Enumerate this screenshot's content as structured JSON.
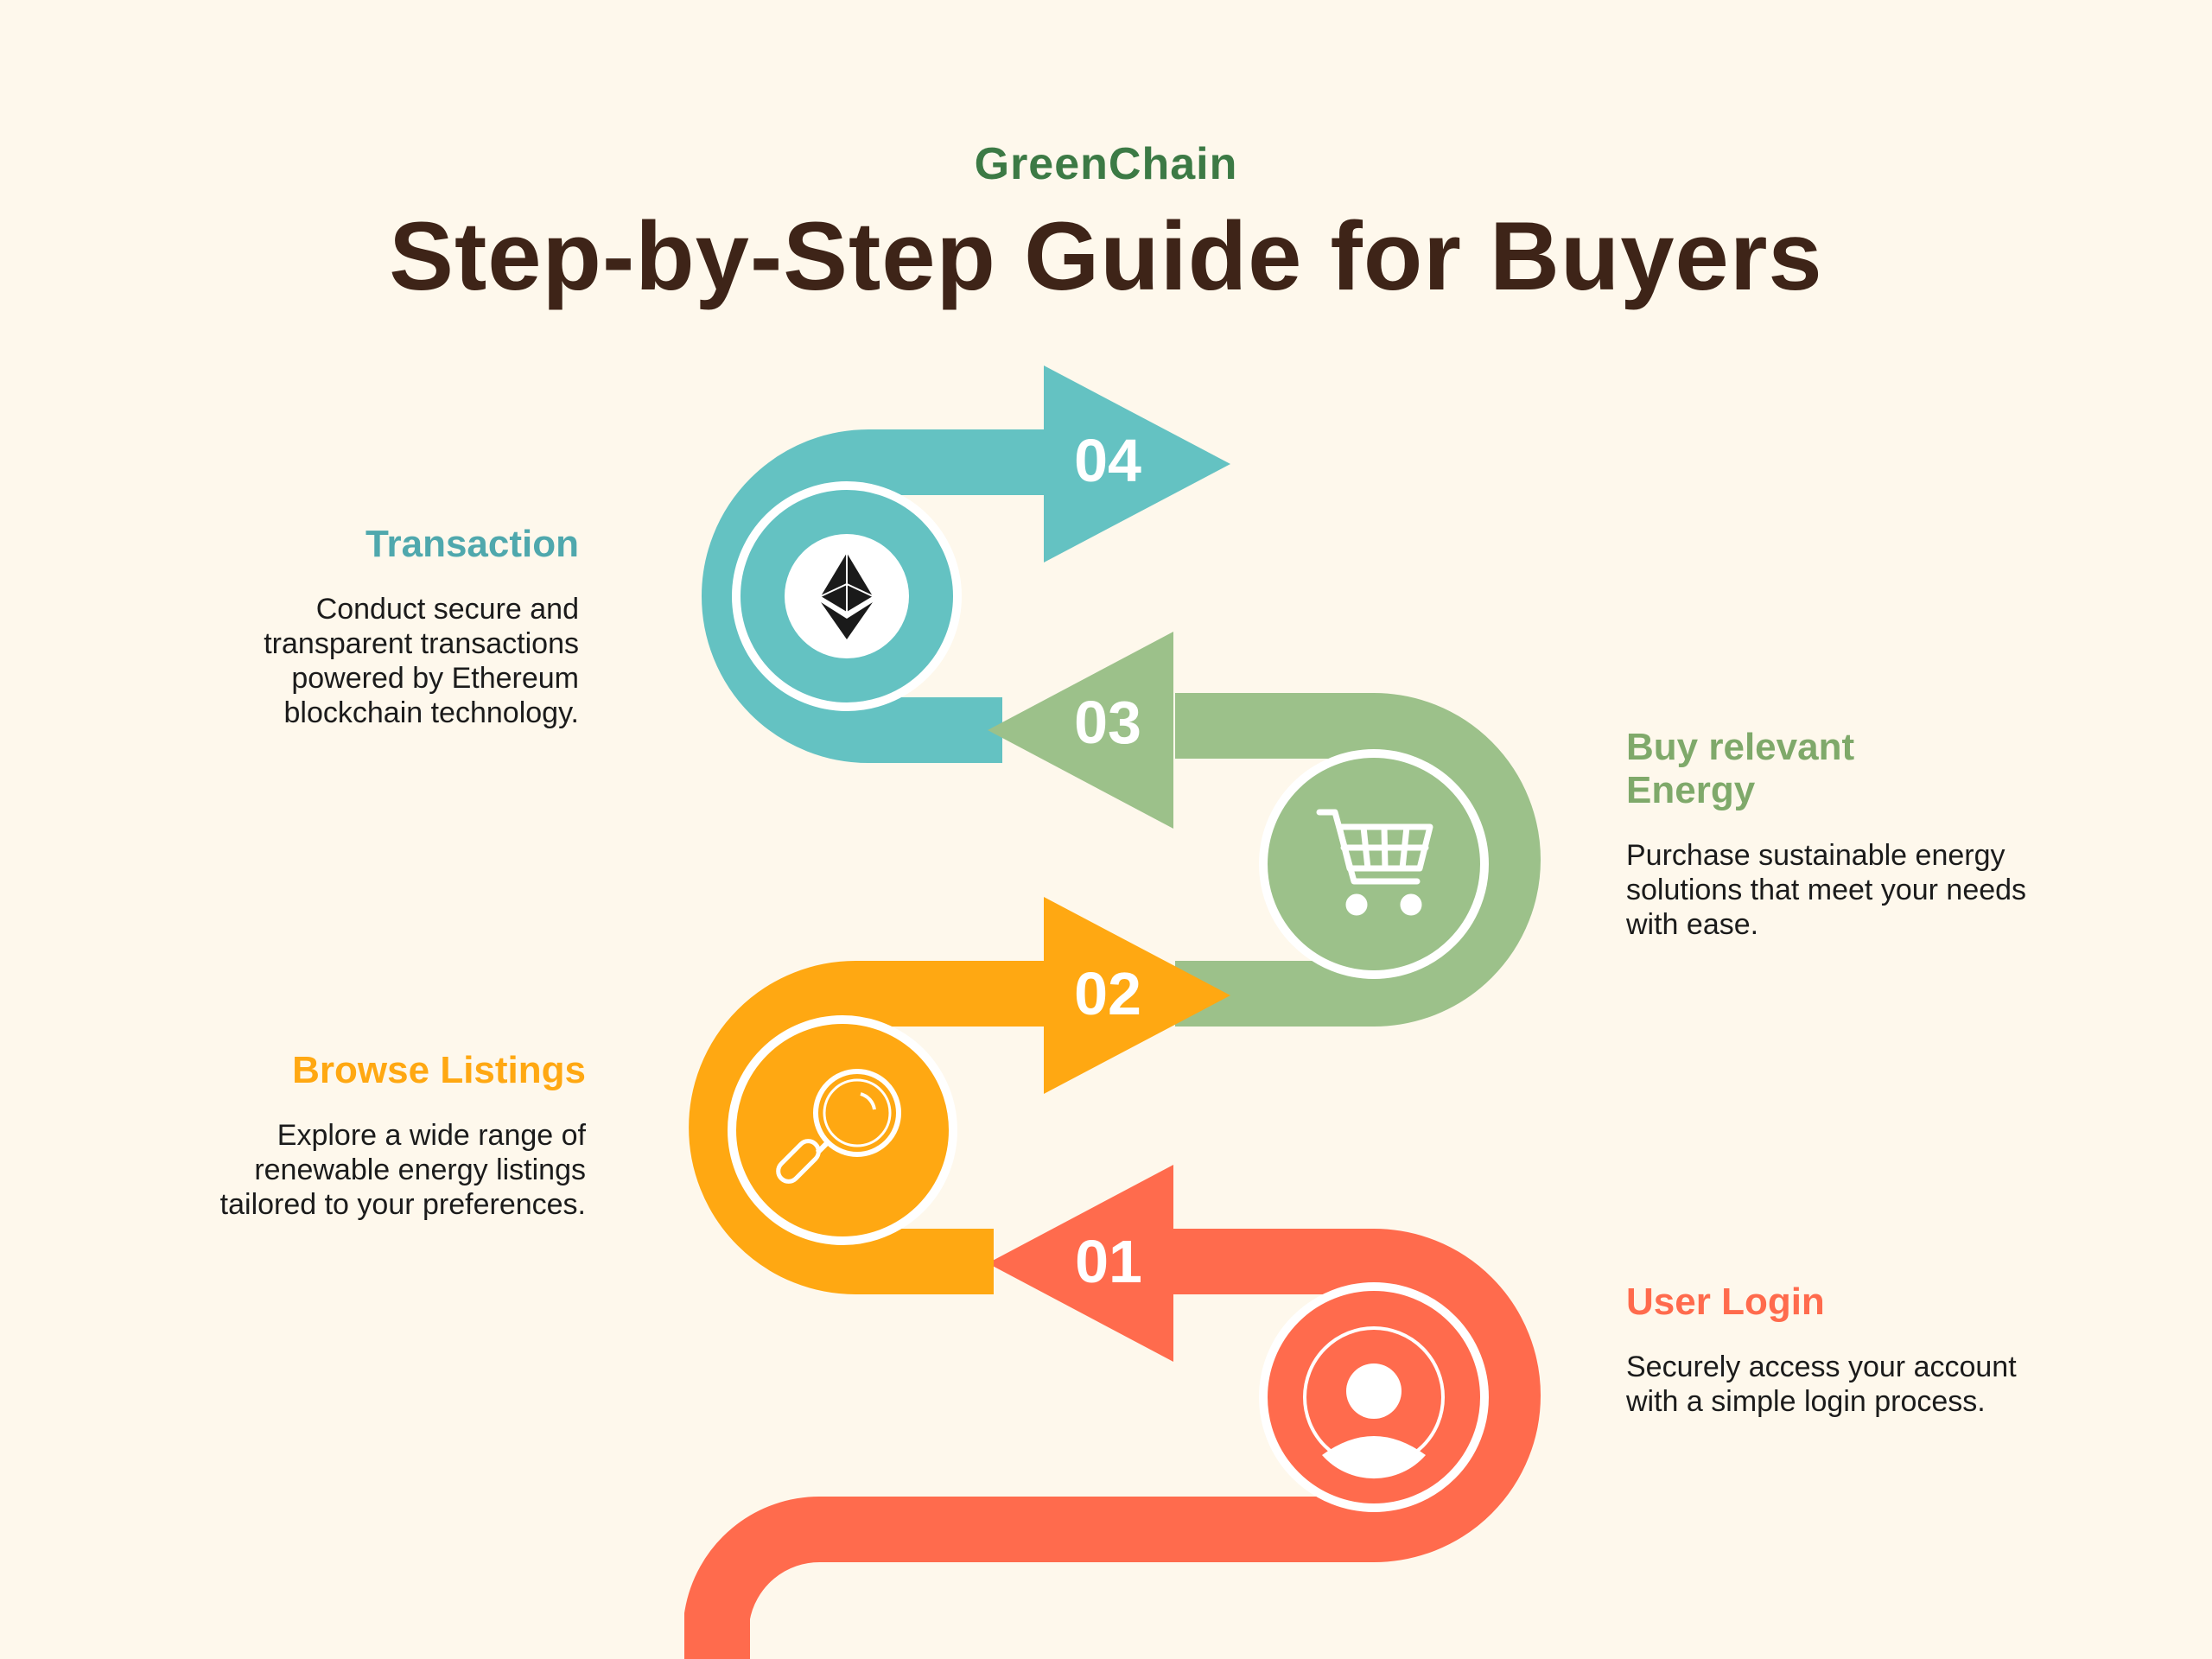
{
  "header": {
    "brand": "GreenChain",
    "title": "Step-by-Step Guide for Buyers"
  },
  "colors": {
    "background": "#FEF8EC",
    "step1": "#FF6B4D",
    "step2": "#FFA812",
    "step3": "#9CC18A",
    "step4": "#64C2C2"
  },
  "steps": [
    {
      "number": "01",
      "title": "User Login",
      "description": "Securely access your account with a simple login process.",
      "icon": "user-icon"
    },
    {
      "number": "02",
      "title": "Browse Listings",
      "description": "Explore a wide range of renewable energy listings tailored to your preferences.",
      "icon": "magnifier-icon"
    },
    {
      "number": "03",
      "title": "Buy relevant Energy",
      "description": "Purchase sustainable energy solutions that meet your needs with ease.",
      "icon": "shopping-cart-icon"
    },
    {
      "number": "04",
      "title": "Transaction",
      "description": "Conduct secure and transparent transactions powered by Ethereum blockchain technology.",
      "icon": "ethereum-icon"
    }
  ]
}
